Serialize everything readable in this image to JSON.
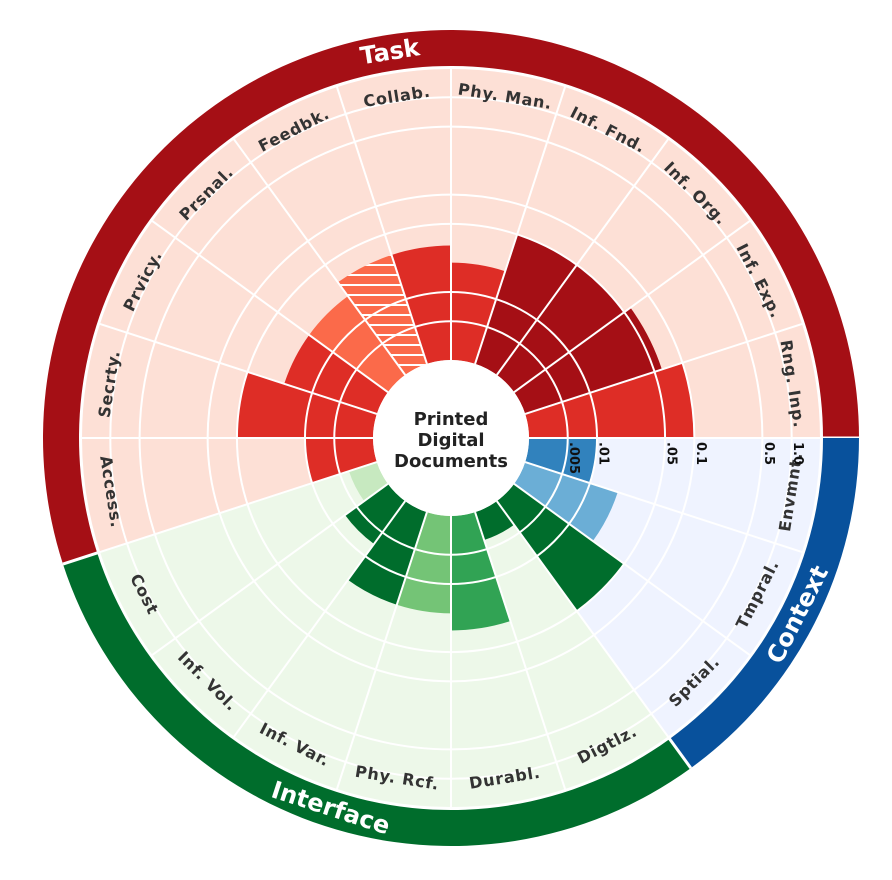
{
  "chart_data": {
    "type": "radial-bar",
    "title": "Printed Digital Documents",
    "scale": "log",
    "ticks": [
      ".005",
      ".01",
      ".05",
      "0.1",
      "0.5",
      "1.0"
    ],
    "tick_values": [
      0.005,
      0.01,
      0.05,
      0.1,
      0.5,
      1.0
    ],
    "rlim": [
      0.002,
      2.0
    ],
    "groups": [
      {
        "name": "Task",
        "color": "#a50f15",
        "bg": "#fde0d6",
        "categories": [
          {
            "label": "Rng. Inp.",
            "value": 0.1,
            "color": "#de2d26"
          },
          {
            "label": "Inf. Exp.",
            "value": 0.06,
            "color": "#a50f15"
          },
          {
            "label": "Inf. Org.",
            "value": 0.05,
            "color": "#a50f15"
          },
          {
            "label": "Inf. Fnd.",
            "value": 0.05,
            "color": "#a50f15"
          },
          {
            "label": "Phy. Man.",
            "value": 0.02,
            "color": "#de2d26"
          },
          {
            "label": "Collab.",
            "value": 0.03,
            "color": "#de2d26"
          },
          {
            "label": "Feedbk.",
            "value": 0.03,
            "color": "#fb6a4a",
            "hatched": true
          },
          {
            "label": "Prsnal.",
            "value": 0.02,
            "color": "#fb6a4a"
          },
          {
            "label": "Prvicy.",
            "value": 0.02,
            "color": "#de2d26"
          },
          {
            "label": "Secrty.",
            "value": 0.05,
            "color": "#de2d26"
          },
          {
            "label": "Access.",
            "value": 0.01,
            "color": "#de2d26"
          }
        ]
      },
      {
        "name": "Interface",
        "color": "#006d2c",
        "bg": "#edf8e9",
        "categories": [
          {
            "label": "Cost",
            "value": 0.004,
            "color": "#c7e9c0"
          },
          {
            "label": "Inf. Vol.",
            "value": 0.007,
            "color": "#006d2c"
          },
          {
            "label": "Inf. Var.",
            "value": 0.02,
            "color": "#006d2c"
          },
          {
            "label": "Phy. Rcf.",
            "value": 0.02,
            "color": "#74c476"
          },
          {
            "label": "Durabl.",
            "value": 0.03,
            "color": "#31a354"
          },
          {
            "label": "Digtlz.",
            "value": 0.004,
            "color": "#006d2c"
          }
        ]
      },
      {
        "name": "Context",
        "color": "#08519c",
        "bg": "#eff3ff",
        "categories": [
          {
            "label": "Sptial.",
            "value": 0.05,
            "color": "#006d2c"
          },
          {
            "label": "Tmpral.",
            "value": 0.02,
            "color": "#6baed6"
          },
          {
            "label": "Envmnt.",
            "value": 0.01,
            "color": "#3182bd"
          }
        ]
      }
    ]
  }
}
